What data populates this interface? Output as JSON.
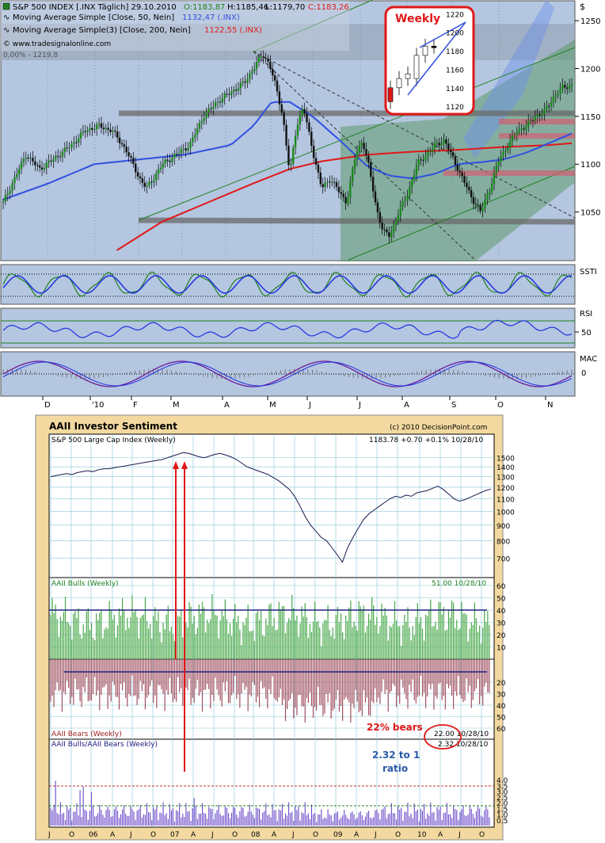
{
  "chart_data": [
    {
      "type": "line",
      "title": "S&P 500 INDEX [.INX Täglich] 29.10.2010",
      "ohlc": {
        "open": "O:1183,87",
        "high": "H:1185,46",
        "low": "L:1179,70",
        "close": "C:1183,26"
      },
      "legend": [
        {
          "name": "Moving Average Simple [Close, 50, Nein]",
          "value": "1132,47 (.INX)",
          "color": "#3050e0"
        },
        {
          "name": "Moving Average Simple(3) [Close, 200, Nein]",
          "value": "1122,55 (.INX)",
          "color": "#e02020"
        }
      ],
      "watermark": "© www.tradesignalonline.com",
      "fib_label": "0,00% - 1219,8",
      "currency": "$",
      "y_ticks": [
        1050,
        1100,
        1150,
        1200,
        1250
      ],
      "ylim": [
        1000,
        1265
      ],
      "x_ticks": [
        "D",
        "'10",
        "F",
        "M",
        "A",
        "M",
        "J",
        "J",
        "A",
        "S",
        "O",
        "N"
      ],
      "price_path": [
        [
          0,
          1060
        ],
        [
          6,
          1090
        ],
        [
          10,
          1110
        ],
        [
          16,
          1095
        ],
        [
          22,
          1105
        ],
        [
          30,
          1120
        ],
        [
          36,
          1135
        ],
        [
          42,
          1140
        ],
        [
          48,
          1135
        ],
        [
          54,
          1115
        ],
        [
          60,
          1085
        ],
        [
          63,
          1075
        ],
        [
          66,
          1085
        ],
        [
          70,
          1100
        ],
        [
          76,
          1110
        ],
        [
          82,
          1120
        ],
        [
          88,
          1150
        ],
        [
          94,
          1165
        ],
        [
          100,
          1175
        ],
        [
          106,
          1185
        ],
        [
          110,
          1200
        ],
        [
          114,
          1215
        ],
        [
          117,
          1205
        ],
        [
          120,
          1180
        ],
        [
          123,
          1150
        ],
        [
          126,
          1090
        ],
        [
          129,
          1140
        ],
        [
          132,
          1160
        ],
        [
          136,
          1115
        ],
        [
          140,
          1075
        ],
        [
          144,
          1085
        ],
        [
          148,
          1070
        ],
        [
          151,
          1060
        ],
        [
          155,
          1110
        ],
        [
          158,
          1125
        ],
        [
          161,
          1095
        ],
        [
          164,
          1055
        ],
        [
          167,
          1030
        ],
        [
          170,
          1025
        ],
        [
          174,
          1050
        ],
        [
          178,
          1070
        ],
        [
          182,
          1100
        ],
        [
          186,
          1110
        ],
        [
          190,
          1120
        ],
        [
          194,
          1125
        ],
        [
          198,
          1105
        ],
        [
          202,
          1085
        ],
        [
          206,
          1065
        ],
        [
          210,
          1050
        ],
        [
          214,
          1075
        ],
        [
          218,
          1105
        ],
        [
          222,
          1120
        ],
        [
          226,
          1135
        ],
        [
          230,
          1140
        ],
        [
          234,
          1150
        ],
        [
          238,
          1155
        ],
        [
          242,
          1170
        ],
        [
          246,
          1180
        ],
        [
          250,
          1183
        ]
      ],
      "sma50_path": [
        [
          0,
          1063
        ],
        [
          20,
          1080
        ],
        [
          40,
          1100
        ],
        [
          60,
          1105
        ],
        [
          80,
          1110
        ],
        [
          100,
          1120
        ],
        [
          110,
          1140
        ],
        [
          118,
          1165
        ],
        [
          126,
          1165
        ],
        [
          136,
          1150
        ],
        [
          148,
          1125
        ],
        [
          160,
          1098
        ],
        [
          170,
          1088
        ],
        [
          180,
          1085
        ],
        [
          190,
          1090
        ],
        [
          200,
          1100
        ],
        [
          210,
          1102
        ],
        [
          220,
          1105
        ],
        [
          230,
          1112
        ],
        [
          240,
          1122
        ],
        [
          250,
          1132
        ]
      ],
      "sma200_path": [
        [
          50,
          1010
        ],
        [
          70,
          1040
        ],
        [
          90,
          1060
        ],
        [
          110,
          1080
        ],
        [
          126,
          1095
        ],
        [
          140,
          1103
        ],
        [
          160,
          1110
        ],
        [
          180,
          1113
        ],
        [
          200,
          1115
        ],
        [
          220,
          1118
        ],
        [
          240,
          1120
        ],
        [
          250,
          1122
        ]
      ],
      "hlines": [
        1150,
        1047
      ],
      "weekly_inset": {
        "title": "Weekly",
        "y_ticks": [
          1120,
          1140,
          1160,
          1180,
          1200,
          1220
        ]
      },
      "indicators": [
        {
          "name": "SSTI"
        },
        {
          "name": "RSI",
          "ticks": [
            "50"
          ]
        },
        {
          "name": "MAC",
          "ticks": [
            "0"
          ]
        }
      ]
    },
    {
      "type": "bar",
      "title": "AAII Investor Sentiment",
      "copyright": "(c) 2010 DecisionPoint.com",
      "panels": [
        {
          "name": "S&P 500 Large Cap Index (Weekly)",
          "readout": "1183.78 +0.70 +0.1% 10/28/10",
          "y_ticks": [
            700,
            800,
            900,
            1000,
            1100,
            1200,
            1300,
            1400,
            1500
          ],
          "log_scale": true,
          "values": [
            1300,
            1310,
            1320,
            1330,
            1320,
            1340,
            1350,
            1360,
            1350,
            1370,
            1380,
            1380,
            1390,
            1400,
            1410,
            1420,
            1430,
            1440,
            1450,
            1460,
            1470,
            1480,
            1500,
            1520,
            1540,
            1560,
            1550,
            1530,
            1510,
            1500,
            1520,
            1540,
            1550,
            1530,
            1510,
            1480,
            1440,
            1400,
            1380,
            1360,
            1340,
            1320,
            1290,
            1260,
            1220,
            1180,
            1120,
            1040,
            960,
            900,
            860,
            820,
            800,
            760,
            720,
            680,
            760,
            820,
            880,
            940,
            980,
            1010,
            1040,
            1070,
            1100,
            1120,
            1110,
            1130,
            1120,
            1150,
            1160,
            1170,
            1190,
            1210,
            1180,
            1140,
            1100,
            1080,
            1090,
            1110,
            1130,
            1150,
            1170,
            1183
          ]
        },
        {
          "name": "AAII Bulls (Weekly)",
          "readout": "51.00 10/28/10",
          "y_ticks": [
            10,
            20,
            30,
            40,
            50,
            60
          ]
        },
        {
          "name": "AAII Bears (Weekly)",
          "readout": "22.00 10/28/10",
          "y_ticks": [
            20,
            30,
            40,
            50,
            60
          ]
        },
        {
          "name": "AAII Bulls/AAII Bears (Weekly)",
          "readout": "2.32 10/28/10",
          "y_ticks": [
            0.5,
            1.0,
            1.5,
            2.0,
            2.5,
            3.0,
            3.5,
            4.0
          ]
        }
      ],
      "annotations": {
        "bears": "22% bears",
        "ratio_line1": "2.32 to 1",
        "ratio_line2": "ratio"
      },
      "x_ticks": [
        "J",
        "O",
        "06",
        "A",
        "J",
        "O",
        "07",
        "A",
        "J",
        "O",
        "08",
        "A",
        "J",
        "O",
        "09",
        "A",
        "J",
        "O",
        "10",
        "A",
        "J",
        "O"
      ]
    }
  ]
}
